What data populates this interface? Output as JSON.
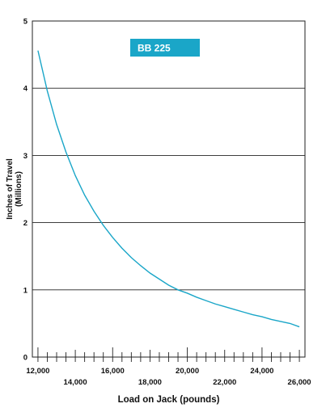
{
  "chart_data": {
    "type": "line",
    "title": "",
    "xlabel": "Load on Jack (pounds)",
    "ylabel": "Inches of Travel",
    "ylabel_sub": "(Millions)",
    "xlim": [
      11700,
      26300
    ],
    "ylim": [
      0,
      5
    ],
    "x_ticks_major": [
      12000,
      16000,
      20000,
      24000
    ],
    "x_ticks_major_labels": [
      "12,000",
      "16,000",
      "20,000",
      "24,000"
    ],
    "x_ticks_minor_labeled": [
      14000,
      18000,
      22000,
      26000
    ],
    "x_ticks_minor_labeled_labels": [
      "14,000",
      "18,000",
      "22,000",
      "26,000"
    ],
    "x_tick_step": 500,
    "y_ticks": [
      0,
      1,
      2,
      3,
      4,
      5
    ],
    "y_tick_labels": [
      "0",
      "1",
      "2",
      "3",
      "4",
      "5"
    ],
    "grid": "horizontal",
    "legend_position": "top-center",
    "series": [
      {
        "name": "BB 225",
        "color": "#1aa6c8",
        "x": [
          12000,
          12500,
          13000,
          13500,
          14000,
          14500,
          15000,
          15500,
          16000,
          16500,
          17000,
          17500,
          18000,
          18500,
          19000,
          19500,
          20000,
          20500,
          21000,
          21500,
          22000,
          22500,
          23000,
          23500,
          24000,
          24500,
          25000,
          25500,
          26000
        ],
        "y": [
          4.56,
          3.96,
          3.46,
          3.05,
          2.7,
          2.41,
          2.17,
          1.96,
          1.78,
          1.62,
          1.48,
          1.36,
          1.25,
          1.16,
          1.07,
          1.0,
          0.95,
          0.89,
          0.84,
          0.79,
          0.75,
          0.71,
          0.67,
          0.63,
          0.6,
          0.56,
          0.53,
          0.5,
          0.45
        ]
      }
    ]
  }
}
